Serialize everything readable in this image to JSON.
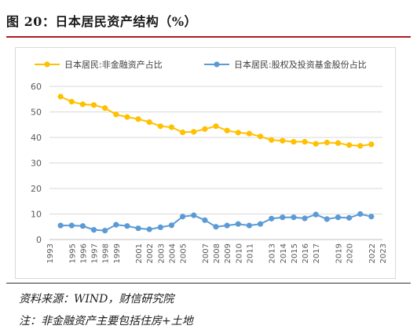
{
  "figure": {
    "title": "图 20：日本居民资产结构（%）",
    "source": "资料来源：WIND，财信研究院",
    "note": "注：非金融资产主要包括住房+土地"
  },
  "colors": {
    "series1": "#FFC000",
    "series2": "#5B9BD5",
    "grid": "#d9d9d9",
    "axis": "#bfbfbf",
    "rule": "#b01c22"
  },
  "chart_data": {
    "type": "line",
    "x": [
      "1993",
      "1994",
      "1995",
      "1996",
      "1997",
      "1998",
      "1999",
      "2000",
      "2001",
      "2002",
      "2003",
      "2004",
      "2005",
      "2006",
      "2007",
      "2008",
      "2009",
      "2010",
      "2011",
      "2012",
      "2013",
      "2014",
      "2015",
      "2016",
      "2017",
      "2018",
      "2019",
      "2020",
      "2021",
      "2022",
      "2023"
    ],
    "tick_labels": [
      "1993",
      "1995",
      "1996",
      "1997",
      "1998",
      "1999",
      "2001",
      "2002",
      "2003",
      "2004",
      "2005",
      "2007",
      "2008",
      "2009",
      "2010",
      "2011",
      "2013",
      "2014",
      "2015",
      "2016",
      "2017",
      "2019",
      "2020",
      "2022",
      "2023"
    ],
    "ylim": [
      0,
      60
    ],
    "yticks": [
      0,
      10,
      20,
      30,
      40,
      50,
      60
    ],
    "grid": true,
    "legend_position": "top",
    "series": [
      {
        "name": "日本居民:非金融资产占比",
        "values": [
          null,
          56,
          54,
          53,
          52.7,
          51.5,
          49,
          48,
          47.2,
          46,
          44.4,
          44,
          42,
          42.2,
          43.3,
          44.4,
          42.7,
          41.9,
          41.5,
          40.4,
          39,
          38.7,
          38.3,
          38.3,
          37.5,
          38,
          37.8,
          37,
          36.7,
          37.3,
          null
        ]
      },
      {
        "name": "日本居民:股权及投资基金股份占比",
        "values": [
          null,
          5.5,
          5.5,
          5.3,
          3.8,
          3.5,
          5.8,
          5.3,
          4.4,
          4,
          4.8,
          5.6,
          9,
          9.5,
          7.6,
          5,
          5.5,
          6.1,
          5.5,
          6.1,
          8.2,
          8.7,
          8.7,
          8.3,
          9.8,
          8,
          8.7,
          8.5,
          10,
          9,
          null
        ]
      }
    ]
  }
}
